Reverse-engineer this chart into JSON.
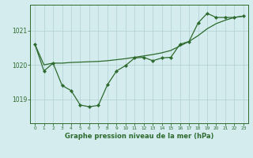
{
  "title": "Graphe pression niveau de la mer (hPa)",
  "bg_color": "#d4ecee",
  "grid_color": "#b0d0d0",
  "line_color": "#2d6a2d",
  "x_ticks": [
    0,
    1,
    2,
    3,
    4,
    5,
    6,
    7,
    8,
    9,
    10,
    11,
    12,
    13,
    14,
    15,
    16,
    17,
    18,
    19,
    20,
    21,
    22,
    23
  ],
  "y_ticks": [
    1019,
    1020,
    1021
  ],
  "ylim": [
    1018.3,
    1021.75
  ],
  "xlim": [
    -0.5,
    23.5
  ],
  "upper_x": [
    0,
    1,
    2,
    3,
    4,
    5,
    6,
    7,
    8,
    9,
    10,
    11,
    12,
    13,
    14,
    15,
    16,
    17,
    18,
    19,
    20,
    21,
    22,
    23
  ],
  "upper_y": [
    1020.6,
    1020.0,
    1020.05,
    1020.05,
    1020.07,
    1020.08,
    1020.09,
    1020.1,
    1020.12,
    1020.15,
    1020.18,
    1020.22,
    1020.26,
    1020.3,
    1020.35,
    1020.42,
    1020.55,
    1020.68,
    1020.85,
    1021.05,
    1021.2,
    1021.3,
    1021.38,
    1021.42
  ],
  "lower_x": [
    0,
    1,
    2,
    3,
    4,
    5,
    6,
    7,
    8,
    9,
    10,
    11,
    12,
    13,
    14,
    15,
    16,
    17,
    18,
    19,
    20,
    21,
    22,
    23
  ],
  "lower_y": [
    1020.6,
    1019.82,
    1020.05,
    1019.4,
    1019.25,
    1018.83,
    1018.78,
    1018.82,
    1019.42,
    1019.82,
    1019.98,
    1020.2,
    1020.22,
    1020.12,
    1020.2,
    1020.22,
    1020.6,
    1020.68,
    1021.22,
    1021.5,
    1021.38,
    1021.38,
    1021.38,
    1021.42
  ]
}
